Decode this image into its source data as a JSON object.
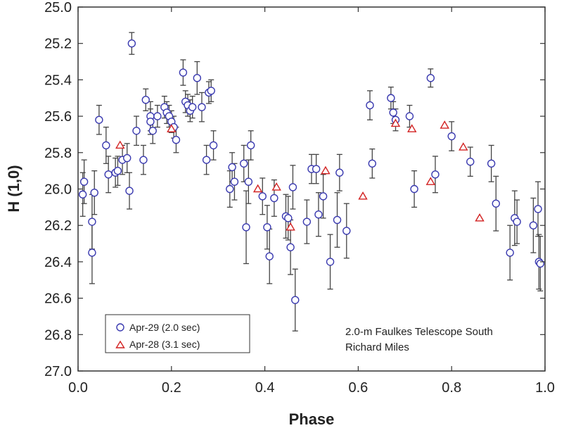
{
  "chart_data": {
    "type": "scatter",
    "xlabel": "Phase",
    "ylabel": "H (1,0)",
    "xlim": [
      0.0,
      1.0
    ],
    "ylim": [
      25.0,
      27.0
    ],
    "y_inverted": true,
    "x_ticks": [
      "0.0",
      "0.2",
      "0.4",
      "0.6",
      "0.8",
      "1.0"
    ],
    "y_ticks": [
      "25.0",
      "25.2",
      "25.4",
      "25.6",
      "25.8",
      "26.0",
      "26.2",
      "26.4",
      "26.6",
      "26.8",
      "27.0"
    ],
    "grid": false,
    "legend_position": "bottom-left",
    "annotation_lines": [
      "2.0-m Faulkes Telescope South",
      "Richard Miles"
    ],
    "series": [
      {
        "name": "Apr-29 (2.0 sec)",
        "marker": "circle",
        "color": "#3a3ab0",
        "points": [
          [
            0.01,
            26.03,
            0.12
          ],
          [
            0.013,
            25.96,
            0.12
          ],
          [
            0.03,
            26.18,
            0.15
          ],
          [
            0.03,
            26.35,
            0.17
          ],
          [
            0.035,
            26.02,
            0.12
          ],
          [
            0.045,
            25.62,
            0.08
          ],
          [
            0.06,
            25.76,
            0.1
          ],
          [
            0.065,
            25.92,
            0.1
          ],
          [
            0.08,
            25.91,
            0.08
          ],
          [
            0.085,
            25.9,
            0.08
          ],
          [
            0.095,
            25.84,
            0.08
          ],
          [
            0.105,
            25.83,
            0.08
          ],
          [
            0.11,
            26.01,
            0.1
          ],
          [
            0.115,
            25.2,
            0.06
          ],
          [
            0.125,
            25.68,
            0.08
          ],
          [
            0.14,
            25.84,
            0.08
          ],
          [
            0.145,
            25.51,
            0.06
          ],
          [
            0.155,
            25.6,
            0.08
          ],
          [
            0.155,
            25.63,
            0.07
          ],
          [
            0.16,
            25.68,
            0.07
          ],
          [
            0.17,
            25.6,
            0.06
          ],
          [
            0.185,
            25.55,
            0.06
          ],
          [
            0.19,
            25.58,
            0.06
          ],
          [
            0.195,
            25.6,
            0.06
          ],
          [
            0.2,
            25.63,
            0.06
          ],
          [
            0.205,
            25.66,
            0.06
          ],
          [
            0.21,
            25.73,
            0.07
          ],
          [
            0.225,
            25.36,
            0.07
          ],
          [
            0.23,
            25.52,
            0.06
          ],
          [
            0.235,
            25.54,
            0.06
          ],
          [
            0.24,
            25.57,
            0.06
          ],
          [
            0.245,
            25.55,
            0.06
          ],
          [
            0.255,
            25.39,
            0.09
          ],
          [
            0.265,
            25.55,
            0.08
          ],
          [
            0.275,
            25.84,
            0.08
          ],
          [
            0.28,
            25.47,
            0.06
          ],
          [
            0.285,
            25.46,
            0.06
          ],
          [
            0.29,
            25.76,
            0.08
          ],
          [
            0.325,
            26.0,
            0.1
          ],
          [
            0.33,
            25.88,
            0.08
          ],
          [
            0.335,
            25.96,
            0.1
          ],
          [
            0.355,
            25.86,
            0.1
          ],
          [
            0.36,
            26.21,
            0.2
          ],
          [
            0.365,
            25.96,
            0.12
          ],
          [
            0.37,
            25.76,
            0.08
          ],
          [
            0.395,
            26.04,
            0.1
          ],
          [
            0.405,
            26.21,
            0.12
          ],
          [
            0.41,
            26.37,
            0.15
          ],
          [
            0.42,
            26.05,
            0.1
          ],
          [
            0.445,
            26.15,
            0.12
          ],
          [
            0.45,
            26.16,
            0.12
          ],
          [
            0.455,
            26.32,
            0.15
          ],
          [
            0.46,
            25.99,
            0.12
          ],
          [
            0.465,
            26.61,
            0.17
          ],
          [
            0.49,
            26.18,
            0.12
          ],
          [
            0.5,
            25.89,
            0.08
          ],
          [
            0.51,
            25.89,
            0.08
          ],
          [
            0.515,
            26.14,
            0.12
          ],
          [
            0.525,
            26.04,
            0.12
          ],
          [
            0.54,
            26.4,
            0.15
          ],
          [
            0.555,
            26.17,
            0.15
          ],
          [
            0.56,
            25.91,
            0.1
          ],
          [
            0.575,
            26.23,
            0.15
          ],
          [
            0.625,
            25.54,
            0.08
          ],
          [
            0.63,
            25.86,
            0.08
          ],
          [
            0.67,
            25.5,
            0.06
          ],
          [
            0.675,
            25.58,
            0.06
          ],
          [
            0.68,
            25.62,
            0.06
          ],
          [
            0.71,
            25.6,
            0.06
          ],
          [
            0.72,
            26.0,
            0.1
          ],
          [
            0.755,
            25.39,
            0.05
          ],
          [
            0.765,
            25.92,
            0.1
          ],
          [
            0.8,
            25.71,
            0.08
          ],
          [
            0.84,
            25.85,
            0.08
          ],
          [
            0.885,
            25.86,
            0.1
          ],
          [
            0.895,
            26.08,
            0.15
          ],
          [
            0.925,
            26.35,
            0.15
          ],
          [
            0.935,
            26.16,
            0.15
          ],
          [
            0.94,
            26.18,
            0.12
          ],
          [
            0.975,
            26.2,
            0.15
          ],
          [
            0.985,
            26.11,
            0.15
          ],
          [
            0.987,
            26.4,
            0.15
          ],
          [
            0.99,
            26.41,
            0.15
          ]
        ]
      },
      {
        "name": "Apr-28 (3.1 sec)",
        "marker": "triangle",
        "color": "#d22222",
        "points": [
          [
            0.09,
            25.76
          ],
          [
            0.2,
            25.67
          ],
          [
            0.385,
            26.0
          ],
          [
            0.425,
            25.99
          ],
          [
            0.455,
            26.21
          ],
          [
            0.53,
            25.9
          ],
          [
            0.61,
            26.04
          ],
          [
            0.68,
            25.64
          ],
          [
            0.715,
            25.67
          ],
          [
            0.755,
            25.96
          ],
          [
            0.785,
            25.65
          ],
          [
            0.825,
            25.77
          ],
          [
            0.86,
            26.16
          ]
        ]
      }
    ]
  }
}
